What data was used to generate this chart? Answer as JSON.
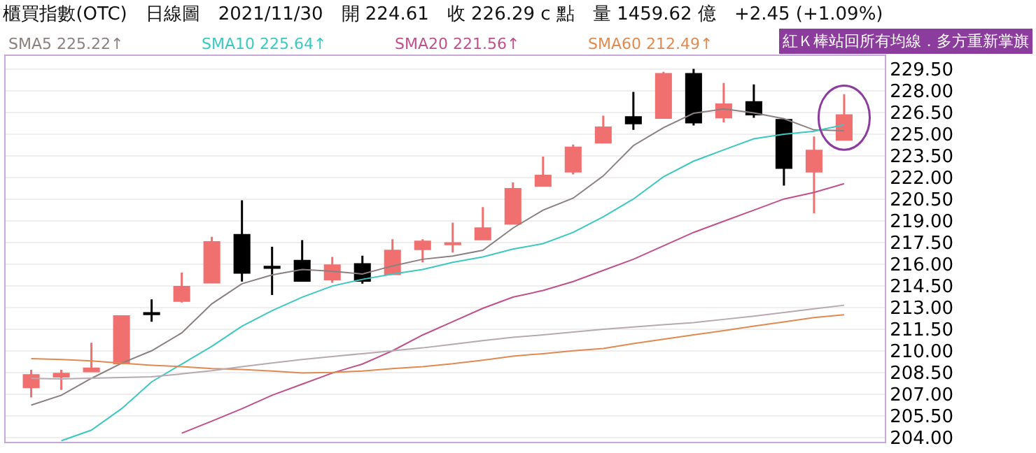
{
  "chart_data": {
    "type": "candlestick",
    "title": "櫃買指數(OTC)　日線圖　2021/11/30　開 224.61　收 226.29 c 點　量 1459.62 億　+2.45 (+1.09%)",
    "annotations": [
      "紅Ｋ棒站回所有均線．多方重新掌旗"
    ],
    "categories": [
      null,
      null,
      null,
      null,
      null,
      null,
      null,
      null,
      null,
      null,
      null,
      null,
      null,
      null,
      null,
      null,
      null,
      null,
      null,
      null,
      null,
      null,
      null,
      null,
      null,
      null,
      null,
      null
    ],
    "ohlc": [
      [
        207.48,
        208.68,
        206.77,
        208.31
      ],
      [
        208.22,
        208.68,
        207.29,
        208.4
      ],
      [
        208.59,
        210.56,
        208.59,
        208.77
      ],
      [
        209.14,
        212.38,
        209.14,
        212.38
      ],
      [
        212.6,
        213.56,
        212.01,
        212.54
      ],
      [
        213.46,
        215.41,
        213.34,
        214.42
      ],
      [
        214.73,
        217.88,
        214.73,
        217.51
      ],
      [
        218.0,
        220.41,
        214.79,
        215.41
      ],
      [
        215.81,
        217.2,
        213.86,
        215.75
      ],
      [
        216.21,
        217.66,
        214.85,
        214.85
      ],
      [
        214.94,
        216.49,
        214.7,
        215.9
      ],
      [
        215.99,
        216.58,
        214.64,
        214.85
      ],
      [
        215.31,
        217.72,
        215.31,
        216.92
      ],
      [
        217.04,
        217.72,
        216.12,
        217.54
      ],
      [
        217.38,
        218.86,
        216.8,
        217.44
      ],
      [
        217.72,
        219.94,
        217.72,
        218.46
      ],
      [
        218.8,
        221.64,
        218.8,
        221.18
      ],
      [
        221.43,
        223.43,
        221.43,
        222.1
      ],
      [
        222.41,
        224.27,
        222.2,
        224.05
      ],
      [
        224.42,
        226.27,
        224.42,
        225.44
      ],
      [
        226.15,
        227.91,
        225.28,
        225.75
      ],
      [
        226.12,
        229.3,
        226.12,
        229.14
      ],
      [
        229.14,
        229.51,
        225.59,
        225.81
      ],
      [
        226.15,
        228.52,
        225.81,
        227.04
      ],
      [
        227.2,
        228.43,
        226.12,
        226.36
      ],
      [
        225.96,
        226.06,
        221.43,
        222.66
      ],
      [
        222.41,
        224.82,
        219.51,
        223.83
      ],
      [
        224.61,
        227.75,
        224.61,
        226.29
      ]
    ],
    "colors": [
      "#f07070",
      "#f07070",
      "#f07070",
      "#f07070",
      "#000000",
      "#f07070",
      "#f07070",
      "#000000",
      "#000000",
      "#000000",
      "#f07070",
      "#000000",
      "#f07070",
      "#f07070",
      "#f07070",
      "#f07070",
      "#f07070",
      "#f07070",
      "#f07070",
      "#f07070",
      "#000000",
      "#f07070",
      "#000000",
      "#f07070",
      "#000000",
      "#000000",
      "#f07070",
      "#f07070"
    ],
    "series": [
      {
        "type": "line",
        "name": "SMA5 225.22↑",
        "color": "#8c7f7f",
        "values": [
          206.24,
          206.92,
          208.09,
          209.14,
          210.0,
          211.24,
          213.25,
          214.64,
          215.25,
          215.62,
          215.5,
          215.31,
          215.87,
          216.33,
          216.55,
          216.95,
          218.49,
          219.73,
          220.56,
          222.1,
          224.2,
          225.44,
          226.43,
          226.73,
          226.46,
          226.06,
          225.28,
          225.22
        ]
      },
      {
        "type": "line",
        "name": "SMA10 225.64↑",
        "color": "#3cc8c0",
        "values": [
          null,
          203.77,
          204.51,
          205.99,
          207.85,
          209.08,
          210.31,
          211.7,
          212.78,
          213.71,
          214.48,
          214.94,
          215.31,
          215.62,
          216.12,
          216.49,
          217.04,
          217.41,
          218.19,
          219.27,
          220.5,
          222.04,
          223.12,
          223.9,
          224.67,
          224.98,
          225.19,
          225.64
        ]
      },
      {
        "type": "line",
        "name": "SMA20 221.56↑",
        "color": "#c0508a",
        "values": [
          null,
          null,
          null,
          null,
          null,
          204.3,
          205.13,
          205.99,
          206.92,
          207.69,
          208.46,
          209.08,
          210.0,
          211.09,
          212.01,
          212.94,
          213.71,
          214.17,
          214.79,
          215.56,
          216.33,
          217.26,
          218.19,
          218.96,
          219.73,
          220.5,
          220.96,
          221.56
        ]
      },
      {
        "type": "line",
        "name": "SMA60 212.49↑",
        "color": "#e08a50",
        "values": [
          209.45,
          209.4,
          209.3,
          209.14,
          209.0,
          208.9,
          208.77,
          208.7,
          208.6,
          208.46,
          208.5,
          208.6,
          208.77,
          208.9,
          209.1,
          209.35,
          209.63,
          209.8,
          210.0,
          210.16,
          210.5,
          210.8,
          211.1,
          211.39,
          211.7,
          212.0,
          212.3,
          212.49
        ]
      },
      {
        "type": "line",
        "color": "#b8a8b0",
        "values": [
          208.09,
          208.05,
          208.1,
          208.15,
          208.2,
          208.4,
          208.62,
          208.9,
          209.15,
          209.4,
          209.6,
          209.8,
          210.0,
          210.2,
          210.45,
          210.7,
          210.93,
          211.1,
          211.3,
          211.49,
          211.65,
          211.8,
          211.95,
          212.17,
          212.4,
          212.65,
          212.9,
          213.15
        ]
      }
    ],
    "ylim": [
      203.7,
      230.4
    ],
    "yticks": [
      {
        "value": 204,
        "label": "204.00"
      },
      {
        "value": 205.5,
        "label": "205.50"
      },
      {
        "value": 207,
        "label": "207.00"
      },
      {
        "value": 208.5,
        "label": "208.50"
      },
      {
        "value": 210,
        "label": "210.00"
      },
      {
        "value": 211.5,
        "label": "211.50"
      },
      {
        "value": 213,
        "label": "213.00"
      },
      {
        "value": 214.5,
        "label": "214.50"
      },
      {
        "value": 216,
        "label": "216.00"
      },
      {
        "value": 217.5,
        "label": "217.50"
      },
      {
        "value": 219,
        "label": "219.00"
      },
      {
        "value": 220.5,
        "label": "220.50"
      },
      {
        "value": 222,
        "label": "222.00"
      },
      {
        "value": 223.5,
        "label": "223.50"
      },
      {
        "value": 225,
        "label": "225.00"
      },
      {
        "value": 226.5,
        "label": "226.50"
      },
      {
        "value": 228,
        "label": "228.00"
      },
      {
        "value": 229.5,
        "label": "229.50"
      }
    ],
    "grid": "y",
    "legend": "top left",
    "tick_labels": "y"
  }
}
